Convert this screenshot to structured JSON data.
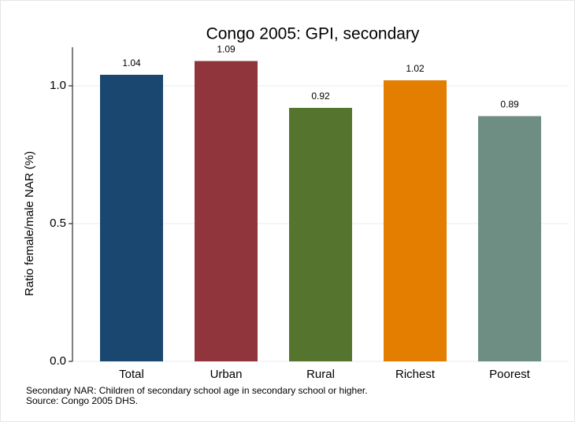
{
  "chart_data": {
    "type": "bar",
    "title": "Congo 2005: GPI, secondary",
    "y_label": "Ratio female/male NAR (%)",
    "categories": [
      "Total",
      "Urban",
      "Rural",
      "Richest",
      "Poorest"
    ],
    "values": [
      1.04,
      1.09,
      0.92,
      1.02,
      0.89
    ],
    "colors": [
      "#1a476f",
      "#90353b",
      "#55752f",
      "#e37e00",
      "#6e8e84"
    ],
    "ylim": [
      0,
      1.14
    ],
    "yticks": [
      {
        "value": 0,
        "label": "0.0"
      },
      0.5,
      {
        "value": 1,
        "label": "1.0"
      }
    ],
    "grid": true,
    "notes": [
      "Secondary NAR: Children of secondary school age in secondary school or higher.",
      "Source: Congo 2005 DHS."
    ]
  }
}
